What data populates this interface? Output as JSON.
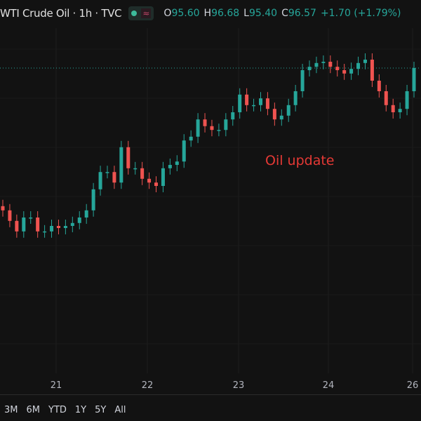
{
  "legend": {
    "title": "WTI Crude Oil · 1h · TVC",
    "status_icon": "market-open-dot",
    "wave_icon": "≈",
    "open_label": "O",
    "open": "95.60",
    "high_label": "H",
    "high": "96.68",
    "low_label": "L",
    "low": "95.40",
    "close_label": "C",
    "close": "96.57",
    "change": "+1.70 (+1.79%)"
  },
  "annotation": "Oil update",
  "colors": {
    "up": "#26a69a",
    "down": "#ef5350",
    "annotation": "#e53935",
    "background": "#121212"
  },
  "x_axis": {
    "ticks": [
      "21",
      "22",
      "23",
      "24",
      "26"
    ]
  },
  "range_buttons": [
    "3M",
    "6M",
    "YTD",
    "1Y",
    "5Y",
    "All"
  ],
  "chart_data": {
    "type": "candlestick",
    "title": "WTI Crude Oil · 1h · TVC",
    "last_price": 96.57,
    "x_ticks": [
      "21",
      "22",
      "23",
      "24",
      "26"
    ],
    "closes": [
      93.19,
      92.94,
      92.69,
      93.02,
      93.02,
      92.69,
      92.69,
      92.82,
      92.77,
      92.82,
      92.89,
      93.02,
      93.19,
      93.69,
      94.1,
      94.1,
      93.85,
      94.69,
      94.19,
      94.19,
      93.94,
      93.85,
      93.77,
      94.19,
      94.27,
      94.35,
      94.85,
      94.94,
      95.35,
      95.19,
      95.1,
      95.1,
      95.35,
      95.52,
      95.94,
      95.69,
      95.69,
      95.85,
      95.6,
      95.35,
      95.44,
      95.69,
      96.02,
      96.52,
      96.6,
      96.69,
      96.72,
      96.6,
      96.52,
      96.44,
      96.55,
      96.69,
      96.77,
      96.27,
      96.02,
      95.69,
      95.52,
      95.6,
      96.02,
      96.57
    ],
    "grid": true
  }
}
